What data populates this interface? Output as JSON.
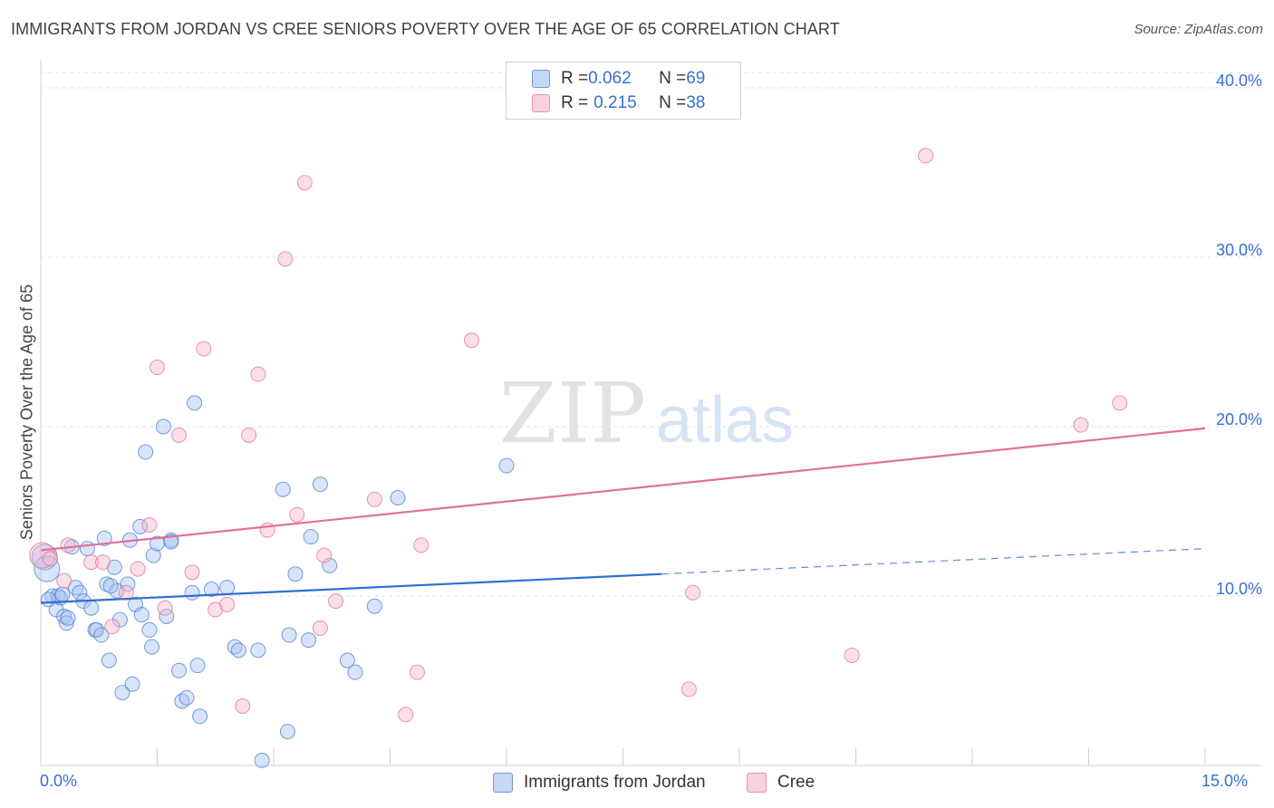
{
  "title": "IMMIGRANTS FROM JORDAN VS CREE SENIORS POVERTY OVER THE AGE OF 65 CORRELATION CHART",
  "source": "Source: ZipAtlas.com",
  "watermark": {
    "zip": "ZIP",
    "atlas": "atlas"
  },
  "legend": [
    {
      "r_label": "R = ",
      "r_value": "0.062",
      "n_label": "N = ",
      "n_value": "69",
      "color": "#a9c4f0"
    },
    {
      "r_label": "R = ",
      "r_value": "0.215",
      "n_label": "N = ",
      "n_value": "38",
      "color": "#f6b8cb"
    }
  ],
  "chart_data": {
    "type": "scatter",
    "xlabel": "",
    "ylabel": "Seniors Poverty Over the Age of 65",
    "xlim": [
      0,
      15
    ],
    "ylim": [
      0,
      40
    ],
    "x_tick_labels": {
      "min": "0.0%",
      "max": "15.0%"
    },
    "y_ticks": [
      {
        "value": 10,
        "label": "10.0%"
      },
      {
        "value": 20,
        "label": "20.0%"
      },
      {
        "value": 30,
        "label": "30.0%"
      },
      {
        "value": 40,
        "label": "40.0%"
      }
    ],
    "grid": true,
    "legend_position": "top-center",
    "series": [
      {
        "name": "Immigrants from Jordan",
        "color": "#4a7fd4",
        "fill": "#a9c4f0",
        "points": [
          [
            0.05,
            12.3
          ],
          [
            0.08,
            11.6
          ],
          [
            0.15,
            10.0
          ],
          [
            0.2,
            9.2
          ],
          [
            0.22,
            10.0
          ],
          [
            0.25,
            9.9
          ],
          [
            0.28,
            10.1
          ],
          [
            0.3,
            8.8
          ],
          [
            0.33,
            8.4
          ],
          [
            0.35,
            8.7
          ],
          [
            0.4,
            12.9
          ],
          [
            0.45,
            10.5
          ],
          [
            0.5,
            10.2
          ],
          [
            0.55,
            9.7
          ],
          [
            0.6,
            12.8
          ],
          [
            0.65,
            9.3
          ],
          [
            0.7,
            8.0
          ],
          [
            0.72,
            8.0
          ],
          [
            0.78,
            7.7
          ],
          [
            0.82,
            13.4
          ],
          [
            0.85,
            10.7
          ],
          [
            0.88,
            6.2
          ],
          [
            0.95,
            11.7
          ],
          [
            0.98,
            10.3
          ],
          [
            1.02,
            8.6
          ],
          [
            1.05,
            4.3
          ],
          [
            1.12,
            10.7
          ],
          [
            1.15,
            13.3
          ],
          [
            1.18,
            4.8
          ],
          [
            1.22,
            9.5
          ],
          [
            1.28,
            14.1
          ],
          [
            1.3,
            8.9
          ],
          [
            1.35,
            18.5
          ],
          [
            1.4,
            8.0
          ],
          [
            1.43,
            7.0
          ],
          [
            1.45,
            12.4
          ],
          [
            1.5,
            13.1
          ],
          [
            1.58,
            20.0
          ],
          [
            1.62,
            8.8
          ],
          [
            1.68,
            13.3
          ],
          [
            1.78,
            5.6
          ],
          [
            1.82,
            3.8
          ],
          [
            1.88,
            4.0
          ],
          [
            1.95,
            10.2
          ],
          [
            1.98,
            21.4
          ],
          [
            2.02,
            5.9
          ],
          [
            2.05,
            2.9
          ],
          [
            2.2,
            10.4
          ],
          [
            2.4,
            10.5
          ],
          [
            2.5,
            7.0
          ],
          [
            2.55,
            6.8
          ],
          [
            2.8,
            6.8
          ],
          [
            2.85,
            0.3
          ],
          [
            3.12,
            16.3
          ],
          [
            3.18,
            2.0
          ],
          [
            3.2,
            7.7
          ],
          [
            3.28,
            11.3
          ],
          [
            3.45,
            7.4
          ],
          [
            3.48,
            13.5
          ],
          [
            3.6,
            16.6
          ],
          [
            3.72,
            11.8
          ],
          [
            3.95,
            6.2
          ],
          [
            4.05,
            5.5
          ],
          [
            4.3,
            9.4
          ],
          [
            4.6,
            15.8
          ],
          [
            6.0,
            17.7
          ],
          [
            0.1,
            9.8
          ],
          [
            0.9,
            10.6
          ],
          [
            1.68,
            13.2
          ]
        ],
        "trend": {
          "solid_from": [
            0,
            9.6
          ],
          "solid_to": [
            8.0,
            11.3
          ],
          "dashed_to": [
            15,
            12.8
          ]
        }
      },
      {
        "name": "Cree",
        "color": "#e36f9a",
        "fill": "#f6b8cb",
        "points": [
          [
            0.02,
            12.4
          ],
          [
            0.3,
            10.9
          ],
          [
            0.35,
            13.0
          ],
          [
            0.65,
            12.0
          ],
          [
            0.8,
            12.0
          ],
          [
            0.92,
            8.2
          ],
          [
            1.1,
            10.2
          ],
          [
            1.25,
            11.6
          ],
          [
            1.4,
            14.2
          ],
          [
            1.5,
            23.5
          ],
          [
            1.6,
            9.3
          ],
          [
            1.78,
            19.5
          ],
          [
            1.95,
            11.4
          ],
          [
            2.1,
            24.6
          ],
          [
            2.25,
            9.2
          ],
          [
            2.4,
            9.5
          ],
          [
            2.6,
            3.5
          ],
          [
            2.68,
            19.5
          ],
          [
            2.8,
            23.1
          ],
          [
            2.92,
            13.9
          ],
          [
            3.15,
            29.9
          ],
          [
            3.3,
            14.8
          ],
          [
            3.4,
            34.4
          ],
          [
            3.6,
            8.1
          ],
          [
            3.65,
            12.4
          ],
          [
            3.8,
            9.7
          ],
          [
            4.3,
            15.7
          ],
          [
            4.7,
            3.0
          ],
          [
            4.85,
            5.5
          ],
          [
            4.9,
            13.0
          ],
          [
            5.55,
            25.1
          ],
          [
            8.35,
            4.5
          ],
          [
            8.4,
            10.2
          ],
          [
            10.45,
            6.5
          ],
          [
            11.4,
            36.0
          ],
          [
            13.4,
            20.1
          ],
          [
            13.9,
            21.4
          ],
          [
            0.12,
            12.2
          ]
        ],
        "trend": {
          "solid_from": [
            0,
            12.7
          ],
          "solid_to": [
            15,
            19.9
          ]
        }
      }
    ]
  }
}
